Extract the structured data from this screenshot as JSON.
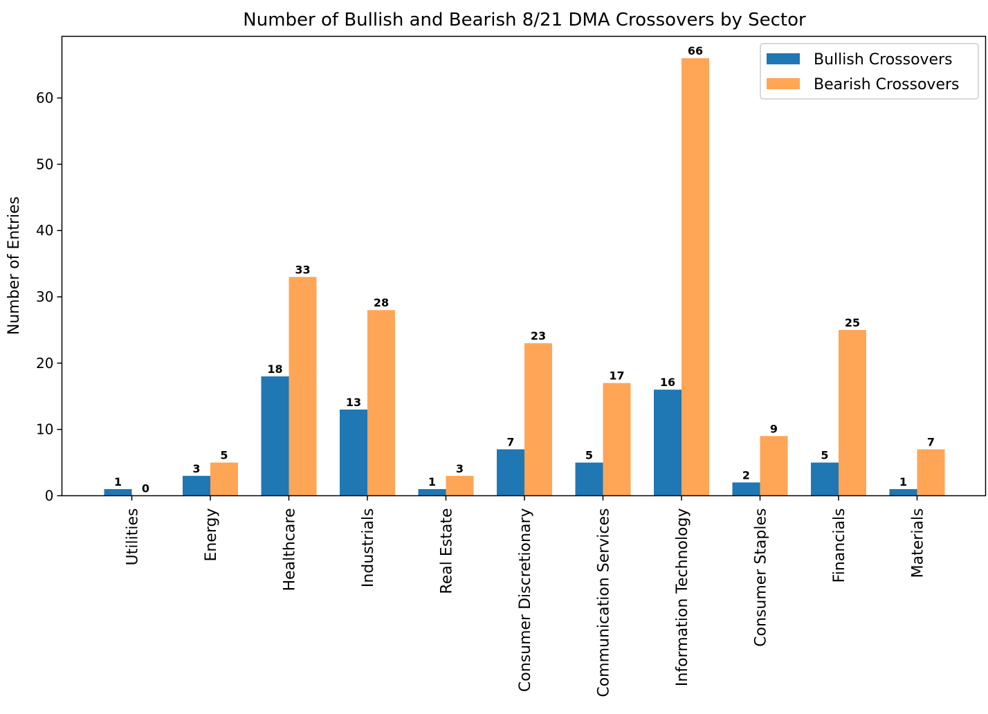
{
  "chart_data": {
    "type": "bar",
    "title": "Number of Bullish and Bearish 8/21 DMA Crossovers by Sector",
    "xlabel": "",
    "ylabel": "Number of Entries",
    "ylim": [
      0,
      69.3
    ],
    "yticks": [
      0,
      10,
      20,
      30,
      40,
      50,
      60
    ],
    "categories": [
      "Utilities",
      "Energy",
      "Healthcare",
      "Industrials",
      "Real Estate",
      "Consumer Discretionary",
      "Communication Services",
      "Information Technology",
      "Consumer Staples",
      "Financials",
      "Materials"
    ],
    "series": [
      {
        "name": "Bullish Crossovers",
        "color": "#1f77b4",
        "values": [
          1,
          3,
          18,
          13,
          1,
          7,
          5,
          16,
          2,
          5,
          1
        ]
      },
      {
        "name": "Bearish Crossovers",
        "color": "#ffa556",
        "values": [
          0,
          5,
          33,
          28,
          3,
          23,
          17,
          66,
          9,
          25,
          7
        ]
      }
    ],
    "legend_position": "top-right",
    "grid": false
  }
}
